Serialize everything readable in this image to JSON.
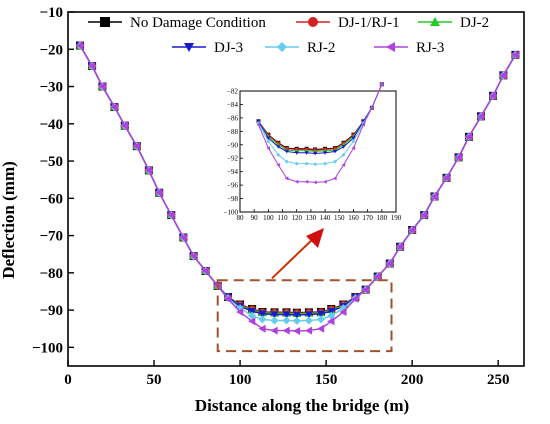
{
  "chart_data": {
    "type": "line",
    "xlabel": "Distance along the bridge (m)",
    "ylabel": "Deflection (mm)",
    "xlim": [
      0,
      265
    ],
    "ylim": [
      -105,
      -10
    ],
    "xticks": [
      0,
      50,
      100,
      150,
      200,
      250
    ],
    "yticks": [
      -10,
      -20,
      -30,
      -40,
      -50,
      -60,
      -70,
      -80,
      -90,
      -100
    ],
    "legend_position": "top",
    "x": [
      7,
      14,
      20,
      27,
      33,
      40,
      47,
      53,
      60,
      67,
      73,
      80,
      87,
      93,
      100,
      107,
      113,
      120,
      127,
      133,
      140,
      147,
      153,
      160,
      167,
      173,
      180,
      187,
      193,
      200,
      207,
      213,
      220,
      227,
      233,
      240,
      247,
      253,
      260
    ],
    "series": [
      {
        "name": "No Damage Condition",
        "color": "#000000",
        "marker": "square",
        "values": [
          -19,
          -24.5,
          -30,
          -35.5,
          -40.5,
          -46,
          -52.5,
          -58.5,
          -64.5,
          -70.5,
          -75.5,
          -79.5,
          -83.5,
          -86.5,
          -88.5,
          -89.7,
          -90.5,
          -90.6,
          -90.6,
          -90.7,
          -90.6,
          -90.5,
          -89.7,
          -88.5,
          -86.5,
          -84.5,
          -81,
          -77.5,
          -73,
          -68.5,
          -64.5,
          -59.5,
          -54.5,
          -49,
          -43.5,
          -38,
          -32.5,
          -27,
          -21.5
        ]
      },
      {
        "name": "DJ-1/RJ-1",
        "color": "#d42020",
        "marker": "circle",
        "values": [
          -19,
          -24.5,
          -30,
          -35.5,
          -40.5,
          -46,
          -52.5,
          -58.5,
          -64.5,
          -70.5,
          -75.5,
          -79.5,
          -83.5,
          -86.5,
          -88.6,
          -89.8,
          -90.6,
          -90.7,
          -90.7,
          -90.8,
          -90.7,
          -90.6,
          -89.8,
          -88.6,
          -86.5,
          -84.5,
          -81,
          -77.5,
          -73,
          -68.5,
          -64.5,
          -59.5,
          -54.5,
          -49,
          -43.5,
          -38,
          -32.5,
          -27,
          -21.5
        ]
      },
      {
        "name": "DJ-2",
        "color": "#22cc22",
        "marker": "triangle-up",
        "values": [
          -19,
          -24.5,
          -30,
          -35.5,
          -40.5,
          -46,
          -52.5,
          -58.5,
          -64.5,
          -70.5,
          -75.5,
          -79.5,
          -83.5,
          -86.5,
          -88.8,
          -90,
          -90.8,
          -90.9,
          -90.9,
          -91,
          -90.9,
          -90.8,
          -90,
          -88.8,
          -86.5,
          -84.5,
          -81,
          -77.5,
          -73,
          -68.5,
          -64.5,
          -59.5,
          -54.5,
          -49,
          -43.5,
          -38,
          -32.5,
          -27,
          -21.5
        ]
      },
      {
        "name": "DJ-3",
        "color": "#1a1acc",
        "marker": "triangle-down",
        "values": [
          -19,
          -24.5,
          -30,
          -35.5,
          -40.5,
          -46,
          -52.5,
          -58.5,
          -64.5,
          -70.5,
          -75.5,
          -79.5,
          -83.5,
          -86.5,
          -89,
          -90.3,
          -91,
          -91.2,
          -91.2,
          -91.3,
          -91.2,
          -91,
          -90.3,
          -89,
          -86.5,
          -84.5,
          -81,
          -77.5,
          -73,
          -68.5,
          -64.5,
          -59.5,
          -54.5,
          -49,
          -43.5,
          -38,
          -32.5,
          -27,
          -21.5
        ]
      },
      {
        "name": "RJ-2",
        "color": "#66ccee",
        "marker": "diamond",
        "values": [
          -19,
          -24.5,
          -30,
          -35.5,
          -40.5,
          -46,
          -52.5,
          -58.5,
          -64.5,
          -70.5,
          -75.5,
          -79.5,
          -83.5,
          -86.8,
          -89.5,
          -91.5,
          -92.5,
          -92.8,
          -92.8,
          -92.9,
          -92.8,
          -92.5,
          -91.5,
          -89.5,
          -86.8,
          -84.5,
          -81,
          -77.5,
          -73,
          -68.5,
          -64.5,
          -59.5,
          -54.5,
          -49,
          -43.5,
          -38,
          -32.5,
          -27,
          -21.5
        ]
      },
      {
        "name": "RJ-3",
        "color": "#b040e0",
        "marker": "triangle-left",
        "values": [
          -19,
          -24.5,
          -30,
          -35.5,
          -40.5,
          -46,
          -52.5,
          -58.5,
          -64.5,
          -70.5,
          -75.5,
          -79.5,
          -83.5,
          -87,
          -90.5,
          -93,
          -95,
          -95.5,
          -95.5,
          -95.6,
          -95.5,
          -95,
          -93,
          -90.5,
          -87,
          -84.5,
          -81,
          -77.5,
          -73,
          -68.5,
          -64.5,
          -59.5,
          -54.5,
          -49,
          -43.5,
          -38,
          -32.5,
          -27,
          -21.5
        ]
      }
    ],
    "highlight_box": {
      "xlim": [
        87,
        188
      ],
      "ylim": [
        -101,
        -82
      ]
    },
    "inset": {
      "xlim": [
        80,
        190
      ],
      "ylim": [
        -100,
        -82
      ],
      "xticks": [
        80,
        90,
        100,
        110,
        120,
        130,
        140,
        150,
        160,
        170,
        180,
        190
      ],
      "yticks": [
        -82,
        -84,
        -86,
        -88,
        -90,
        -92,
        -94,
        -96,
        -98,
        -100
      ],
      "xrange_data": [
        93,
        180
      ]
    }
  }
}
